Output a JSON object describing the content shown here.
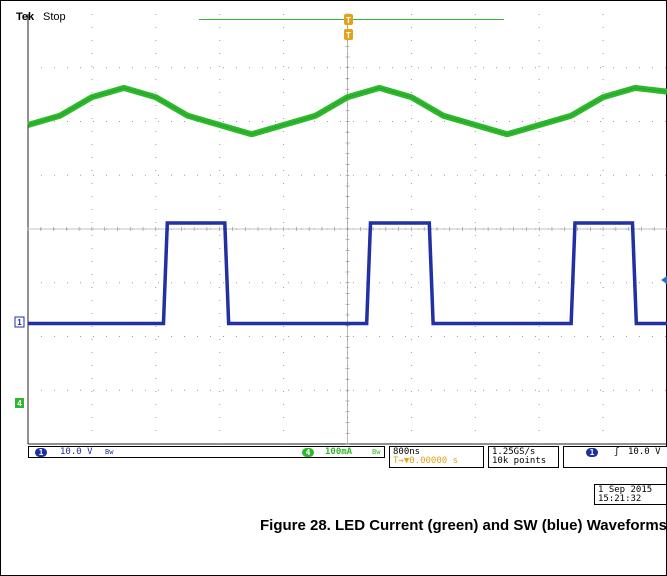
{
  "header": {
    "brand": "Tek",
    "status": "Stop"
  },
  "markers": {
    "trigger_position": "T",
    "channel1": "1",
    "channel4": "4"
  },
  "status_bar": {
    "ch1_badge": "1",
    "ch1_scale": "10.0 V",
    "ch1_bw": "Bw",
    "ch4_badge": "4",
    "ch4_scale": "100mA",
    "ch4_bw": "Bw",
    "timebase": "800ns",
    "trigger_offset": "T→▼0.00000 s",
    "sample_rate": "1.25GS/s",
    "record_length": "10k points",
    "trig_channel": "1",
    "trig_slope": "ʃ",
    "trig_level": "10.0 V"
  },
  "timestamp": {
    "date": "1 Sep  2015",
    "time": "15:21:32"
  },
  "caption": "Figure 28. LED Current (green) and SW (blue) Waveforms",
  "colors": {
    "led_current": "#2db82d",
    "sw": "#1f2fa0",
    "grid": "#9a9a9a",
    "trigger": "#e3a21a"
  },
  "chart_data": {
    "type": "line",
    "title": "",
    "xlabel": "",
    "ylabel": "",
    "grid": true,
    "series": [
      {
        "name": "LED Current (green)",
        "x": [
          0,
          0.5,
          1,
          1.5,
          2,
          2.5,
          3,
          3.5,
          4,
          4.5,
          5,
          5.5,
          6,
          6.5,
          7,
          7.5,
          8,
          8.5,
          9,
          9.5,
          10
        ],
        "y": [
          1.5,
          1.55,
          1.65,
          1.7,
          1.65,
          1.55,
          1.5,
          1.45,
          1.5,
          1.55,
          1.65,
          1.7,
          1.65,
          1.55,
          1.5,
          1.45,
          1.5,
          1.55,
          1.65,
          1.7,
          1.68
        ]
      },
      {
        "name": "SW (blue)",
        "x": [
          0,
          2.12,
          2.18,
          3.08,
          3.14,
          5.3,
          5.36,
          6.28,
          6.34,
          8.5,
          8.56,
          9.46,
          9.52,
          10
        ],
        "y": [
          0,
          0,
          1.75,
          1.75,
          0,
          0,
          1.75,
          1.75,
          0,
          0,
          1.75,
          1.75,
          0,
          0
        ]
      }
    ]
  }
}
